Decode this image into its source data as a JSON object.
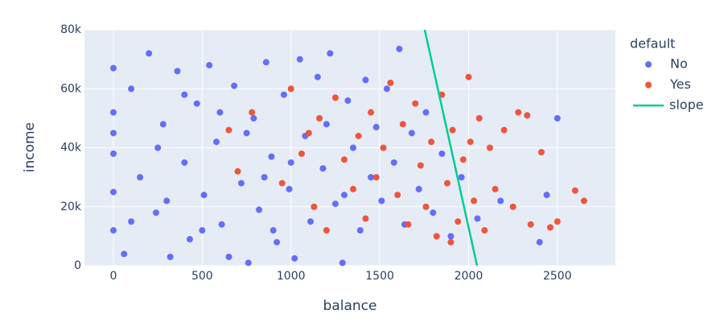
{
  "chart_data": {
    "type": "scatter",
    "x_label": "balance",
    "y_label": "income",
    "legend_title": "default",
    "legend_position": "right",
    "grid": true,
    "xlim": [
      -163,
      2827
    ],
    "ylim": [
      0,
      80000
    ],
    "xticks": [
      0,
      500,
      1000,
      1500,
      2000,
      2500
    ],
    "yticks": [
      {
        "value": 0,
        "label": "0"
      },
      {
        "value": 20000,
        "label": "20k"
      },
      {
        "value": 40000,
        "label": "40k"
      },
      {
        "value": 60000,
        "label": "60k"
      },
      {
        "value": 80000,
        "label": "80k"
      }
    ],
    "series": [
      {
        "name": "No",
        "color": "#636efa",
        "mode": "markers",
        "x": [
          0,
          0,
          0,
          0,
          0,
          0,
          60,
          100,
          150,
          200,
          240,
          280,
          320,
          360,
          400,
          430,
          470,
          510,
          540,
          580,
          610,
          650,
          680,
          720,
          760,
          790,
          820,
          860,
          890,
          920,
          960,
          990,
          1020,
          1050,
          1080,
          1110,
          1150,
          1180,
          1220,
          1250,
          1290,
          1320,
          1350,
          1390,
          1420,
          1450,
          1480,
          1510,
          1540,
          1580,
          1610,
          1640,
          1680,
          1720,
          1760,
          1800,
          1850,
          1900,
          1960,
          2050,
          2180,
          2400,
          2440,
          2500,
          250,
          750,
          300,
          1000,
          500,
          1200,
          850,
          100,
          600,
          1300,
          400,
          900
        ],
        "values": [
          67000,
          52000,
          38000,
          25000,
          12000,
          45000,
          4000,
          60000,
          30000,
          72000,
          18000,
          48000,
          3000,
          66000,
          35000,
          9000,
          55000,
          24000,
          68000,
          42000,
          14000,
          3000,
          61000,
          28000,
          1000,
          50000,
          19000,
          69000,
          37000,
          8000,
          58000,
          26000,
          2500,
          70000,
          44000,
          15000,
          64000,
          33000,
          72000,
          21000,
          1000,
          56000,
          40000,
          12000,
          63000,
          30000,
          47000,
          22000,
          60000,
          35000,
          73500,
          14000,
          45000,
          26000,
          52000,
          18000,
          38000,
          10000,
          30000,
          16000,
          22000,
          8000,
          24000,
          50000,
          40000,
          45000,
          22000,
          35000,
          12000,
          48000,
          30000,
          15000,
          52000,
          24000,
          58000,
          12000
        ]
      },
      {
        "name": "Yes",
        "color": "#EF553B",
        "mode": "markers",
        "x": [
          650,
          700,
          780,
          950,
          1000,
          1060,
          1100,
          1130,
          1160,
          1200,
          1250,
          1300,
          1350,
          1380,
          1420,
          1450,
          1480,
          1520,
          1560,
          1600,
          1630,
          1660,
          1700,
          1730,
          1760,
          1790,
          1820,
          1850,
          1880,
          1910,
          1940,
          1970,
          2000,
          2030,
          2060,
          2090,
          2120,
          2150,
          2200,
          2250,
          2280,
          2330,
          2350,
          2410,
          2460,
          2500,
          2600,
          2650,
          1900,
          2010
        ],
        "values": [
          46000,
          32000,
          52000,
          28000,
          60000,
          38000,
          45000,
          20000,
          50000,
          12000,
          57000,
          36000,
          26000,
          44000,
          16000,
          52000,
          30000,
          40000,
          62000,
          24000,
          48000,
          14000,
          55000,
          34000,
          20000,
          42000,
          10000,
          58000,
          28000,
          46000,
          15000,
          36000,
          64000,
          22000,
          50000,
          12000,
          40000,
          26000,
          46000,
          20000,
          52000,
          51000,
          14000,
          38500,
          13000,
          15000,
          25500,
          22000,
          8000,
          42000
        ]
      },
      {
        "name": "slope",
        "color": "#00cc96",
        "mode": "lines",
        "x": [
          1753,
          2048
        ],
        "values": [
          80000,
          0
        ]
      }
    ]
  }
}
